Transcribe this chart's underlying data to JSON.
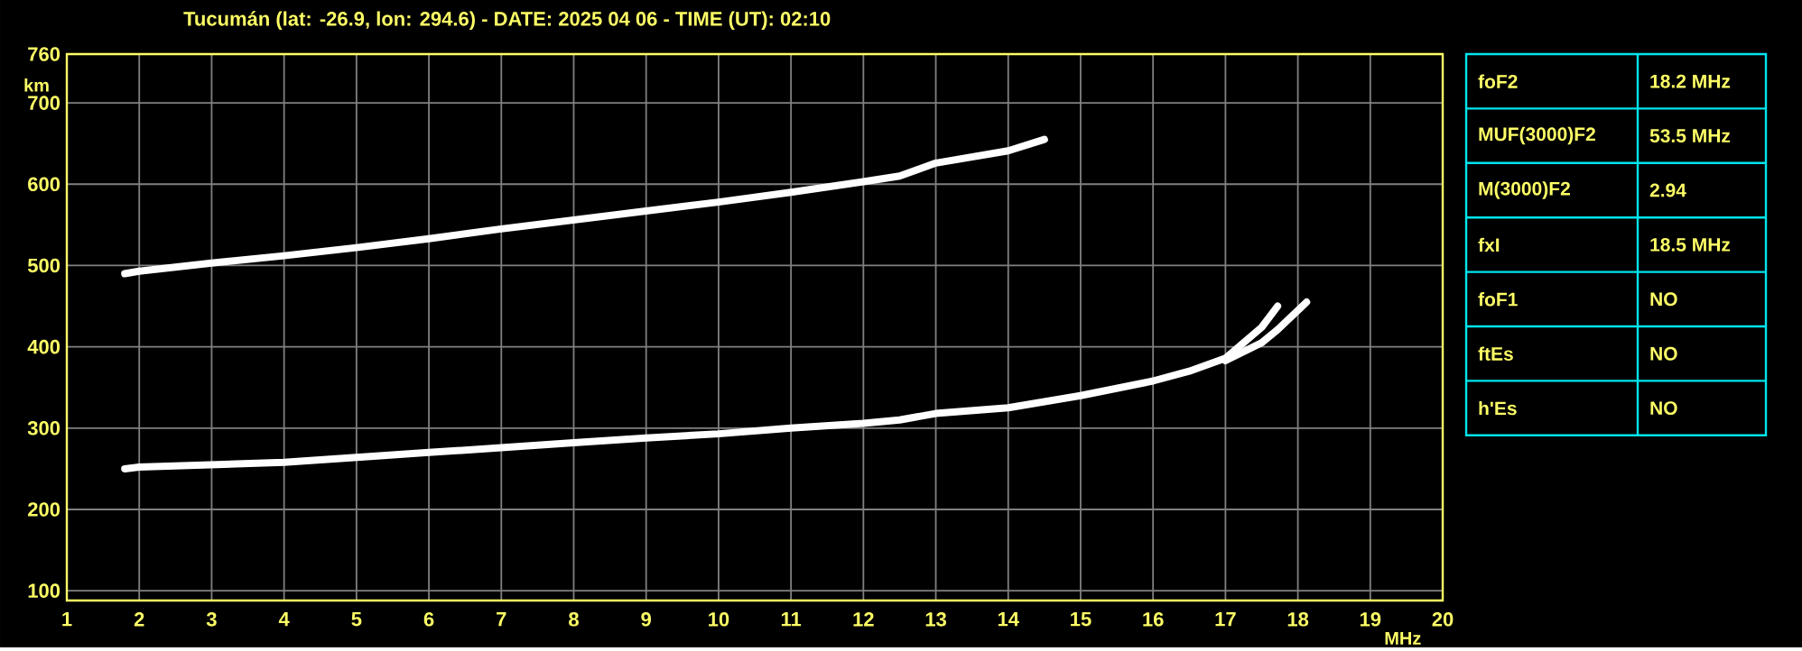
{
  "chart_data": [
    {
      "type": "line",
      "title": "Tucumán (lat: -26.9, lon: 294.6) - DATE: 2025 04 06 - TIME (UT): 02:10",
      "xlabel": "MHz",
      "ylabel": "km",
      "xlim": [
        1,
        20
      ],
      "ylim": [
        88,
        760
      ],
      "xticks": [
        1,
        2,
        3,
        4,
        5,
        6,
        7,
        8,
        9,
        10,
        11,
        12,
        13,
        14,
        15,
        16,
        17,
        18,
        19,
        20
      ],
      "yticks": [
        100,
        200,
        300,
        400,
        500,
        600,
        700,
        760
      ],
      "grid": true,
      "marker": "none",
      "line_style": "solid",
      "series": [
        {
          "color": "#ffffff",
          "x": [
            1.8,
            2,
            3,
            4,
            5,
            6,
            7,
            8,
            9,
            10,
            11,
            12,
            12.5,
            13,
            14,
            15,
            16,
            16.5,
            17,
            17.5,
            17.72
          ],
          "values": [
            250,
            252,
            255,
            258,
            264,
            270,
            276,
            282,
            288,
            293,
            300,
            306,
            310,
            318,
            325,
            340,
            358,
            370,
            386,
            424,
            450
          ]
        },
        {
          "color": "#ffffff",
          "x": [
            17,
            17.5,
            17.72,
            18.12
          ],
          "values": [
            383,
            405,
            421,
            455
          ]
        },
        {
          "color": "#ffffff",
          "x": [
            1.8,
            2,
            3,
            4,
            5,
            6,
            7,
            8,
            9,
            10,
            11,
            12,
            12.5,
            13,
            14,
            14.5
          ],
          "values": [
            490,
            493,
            503,
            512,
            522,
            533,
            545,
            556,
            567,
            578,
            590,
            603,
            610,
            626,
            641,
            655
          ]
        }
      ]
    },
    {
      "type": "other",
      "categories": [
        "foF2",
        "MUF(3000)F2",
        "M(3000)F2",
        "fxI",
        "foF1",
        "ftEs",
        "h'Es"
      ],
      "value_labels": [
        "18.2 MHz",
        "53.5 MHz",
        "2.94",
        "18.5 MHz",
        "NO",
        "NO",
        "NO"
      ]
    }
  ]
}
